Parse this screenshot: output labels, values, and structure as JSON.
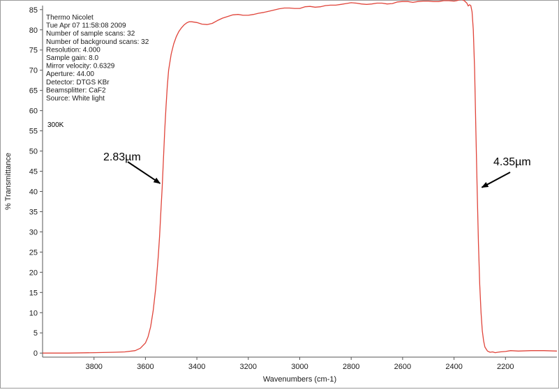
{
  "chart_data": {
    "type": "line",
    "xlabel": "Wavenumbers (cm-1)",
    "ylabel": "% Transmittance",
    "xlim": [
      4000,
      2000
    ],
    "ylim": [
      -1,
      86
    ],
    "x_reversed": true,
    "x_ticks": [
      3800,
      3600,
      3400,
      3200,
      3000,
      2800,
      2600,
      2400,
      2200
    ],
    "y_ticks": [
      0,
      5,
      10,
      15,
      20,
      25,
      30,
      35,
      40,
      45,
      50,
      55,
      60,
      65,
      70,
      75,
      80,
      85
    ],
    "grid": false,
    "line_color": "#e0443a",
    "series": [
      {
        "x": [
          4000,
          3900,
          3800,
          3720,
          3680,
          3640,
          3620,
          3600,
          3590,
          3580,
          3570,
          3560,
          3550,
          3545,
          3540,
          3535,
          3530,
          3525,
          3520,
          3515,
          3510,
          3500,
          3490,
          3480,
          3470,
          3460,
          3450,
          3440,
          3430,
          3420,
          3400,
          3380,
          3360,
          3340,
          3320,
          3300,
          3280,
          3260,
          3240,
          3220,
          3200,
          3180,
          3160,
          3140,
          3120,
          3100,
          3080,
          3060,
          3040,
          3020,
          3000,
          2980,
          2960,
          2940,
          2920,
          2900,
          2880,
          2860,
          2840,
          2820,
          2800,
          2780,
          2760,
          2740,
          2720,
          2700,
          2680,
          2660,
          2640,
          2620,
          2600,
          2580,
          2560,
          2540,
          2520,
          2500,
          2480,
          2460,
          2440,
          2420,
          2400,
          2390,
          2380,
          2370,
          2360,
          2350,
          2345,
          2340,
          2335,
          2330,
          2325,
          2320,
          2315,
          2310,
          2305,
          2300,
          2295,
          2290,
          2285,
          2280,
          2270,
          2260,
          2250,
          2240,
          2230,
          2220,
          2200,
          2180,
          2150,
          2100,
          2050,
          2000
        ],
        "y": [
          0,
          0,
          0.1,
          0.2,
          0.3,
          0.6,
          1.2,
          2.5,
          4.0,
          6.5,
          10.5,
          16.0,
          24.0,
          29.0,
          35.0,
          41.0,
          48.0,
          55.0,
          61.0,
          66.0,
          70.0,
          74.0,
          76.5,
          78.3,
          79.6,
          80.5,
          81.2,
          81.7,
          82.0,
          82.0,
          81.8,
          81.4,
          81.3,
          81.6,
          82.3,
          82.9,
          83.3,
          83.7,
          83.8,
          83.6,
          83.6,
          83.8,
          84.1,
          84.3,
          84.6,
          84.9,
          85.2,
          85.4,
          85.4,
          85.3,
          85.3,
          85.7,
          85.8,
          85.6,
          85.7,
          86.0,
          86.1,
          86.1,
          86.3,
          86.5,
          86.7,
          86.6,
          86.4,
          86.3,
          86.4,
          86.6,
          86.6,
          86.4,
          86.5,
          86.9,
          87.0,
          87.0,
          86.8,
          87.0,
          87.1,
          87.1,
          87.0,
          87.0,
          87.2,
          87.2,
          87.1,
          87.2,
          87.4,
          87.5,
          87.2,
          86.6,
          85.9,
          86.2,
          86.0,
          84.5,
          80.0,
          70.0,
          55.0,
          40.0,
          27.0,
          17.0,
          10.0,
          5.5,
          3.0,
          1.5,
          0.5,
          0.2,
          0.3,
          0.1,
          0.2,
          0.3,
          0.4,
          0.6,
          0.5,
          0.6,
          0.6,
          0.5
        ]
      }
    ]
  },
  "instrument_info": [
    "Thermo Nicolet",
    "Tue Apr 07 11:58:08 2009",
    "Number of sample scans:  32",
    "Number of background scans:  32",
    "Resolution:   4.000",
    "Sample gain:  8.0",
    "Mirror velocity:  0.6329",
    "Aperture:  44.00",
    "Detector:  DTGS KBr",
    "Beamsplitter:  CaF2",
    "Source:  White light"
  ],
  "temperature_note": "300K",
  "annotations": [
    {
      "label": "2.83µm",
      "x": 3535,
      "y": 42
    },
    {
      "label": "4.35µm",
      "x": 2300,
      "y": 41
    }
  ]
}
